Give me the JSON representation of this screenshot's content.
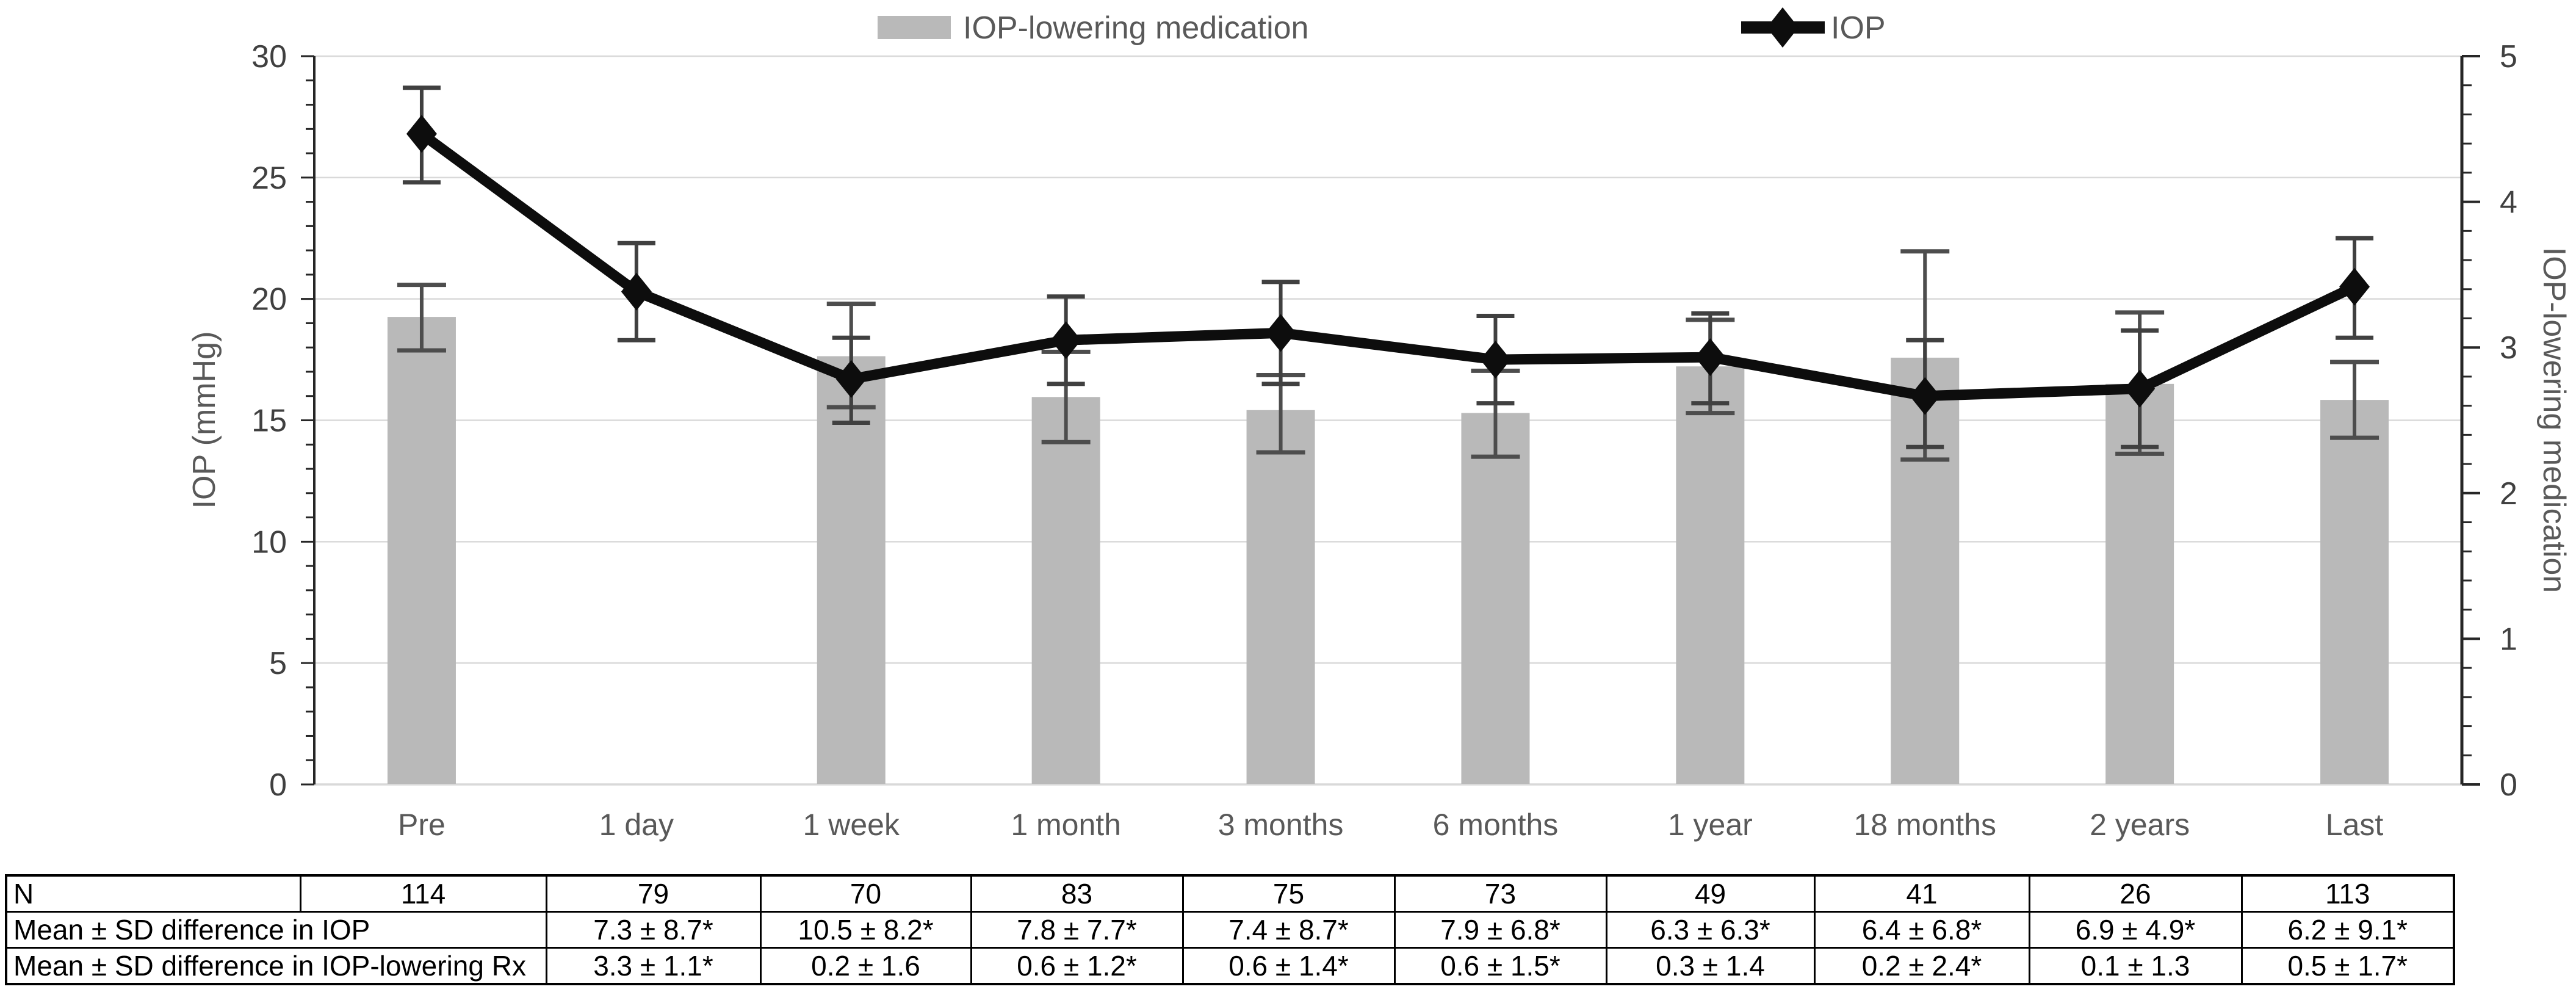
{
  "legend": {
    "medication_label": "IOP-lowering medication",
    "iop_label": "IOP"
  },
  "axes": {
    "left_title": "IOP (mmHg)",
    "left_ticks": [
      0,
      5,
      10,
      15,
      20,
      25,
      30
    ],
    "left_range": [
      0,
      30
    ],
    "right_title": "IOP-lowering medication",
    "right_ticks": [
      0,
      1,
      2,
      3,
      4,
      5
    ],
    "right_range": [
      0,
      5
    ]
  },
  "colors": {
    "bar_fill": "#b9b9b9",
    "bar_error": "#4d4d4d",
    "line": "#0d0d0d",
    "line_error": "#404040",
    "gridline": "#d9d9d9",
    "axis_line": "#262626",
    "tick_text": "#404040",
    "label_text": "#595959",
    "table_text": "#000000"
  },
  "chart_data": {
    "type": "bar+line",
    "categories": [
      "Pre",
      "1 day",
      "1 week",
      "1 month",
      "3 months",
      "6 months",
      "1 year",
      "18 months",
      "2 years",
      "Last"
    ],
    "left_ylim": [
      0,
      30
    ],
    "right_ylim": [
      0,
      5
    ],
    "grid_step_left": 5,
    "legend_position": "top",
    "series": [
      {
        "name": "IOP-lowering medication",
        "type": "bar",
        "axis": "right",
        "values": [
          3.21,
          null,
          2.94,
          2.66,
          2.57,
          2.55,
          2.87,
          2.93,
          2.75,
          2.64
        ],
        "err_low": [
          2.98,
          null,
          2.59,
          2.35,
          2.28,
          2.25,
          2.55,
          2.23,
          2.27,
          2.38
        ],
        "err_high": [
          3.43,
          null,
          3.3,
          2.97,
          2.81,
          2.84,
          3.19,
          3.66,
          3.24,
          2.9
        ]
      },
      {
        "name": "IOP",
        "type": "line",
        "axis": "left",
        "values": [
          26.8,
          20.3,
          16.7,
          18.3,
          18.6,
          17.5,
          17.6,
          16.0,
          16.3,
          20.5
        ],
        "err_low": [
          24.8,
          18.3,
          14.9,
          16.5,
          16.5,
          15.7,
          15.7,
          13.9,
          13.9,
          18.4
        ],
        "err_high": [
          28.7,
          22.3,
          18.4,
          20.1,
          20.7,
          19.3,
          19.4,
          18.3,
          18.7,
          22.5
        ]
      }
    ]
  },
  "table": {
    "row_n": {
      "label": "N",
      "values": [
        "114",
        "79",
        "70",
        "83",
        "75",
        "73",
        "49",
        "41",
        "26",
        "113"
      ]
    },
    "row_iop": {
      "label": "Mean ± SD difference in IOP",
      "values": [
        "7.3 ± 8.7*",
        "10.5 ± 8.2*",
        "7.8 ± 7.7*",
        "7.4 ± 8.7*",
        "7.9 ± 6.8*",
        "6.3 ± 6.3*",
        "6.4 ± 6.8*",
        "6.9 ± 4.9*",
        "6.2 ± 9.1*"
      ]
    },
    "row_rx": {
      "label": "Mean ± SD difference in IOP-lowering Rx",
      "values": [
        "3.3 ± 1.1*",
        "0.2 ± 1.6",
        "0.6 ± 1.2*",
        "0.6 ± 1.4*",
        "0.6 ± 1.5*",
        "0.3 ± 1.4",
        "0.2 ± 2.4*",
        "0.1 ± 1.3",
        "0.5 ± 1.7*"
      ]
    }
  }
}
